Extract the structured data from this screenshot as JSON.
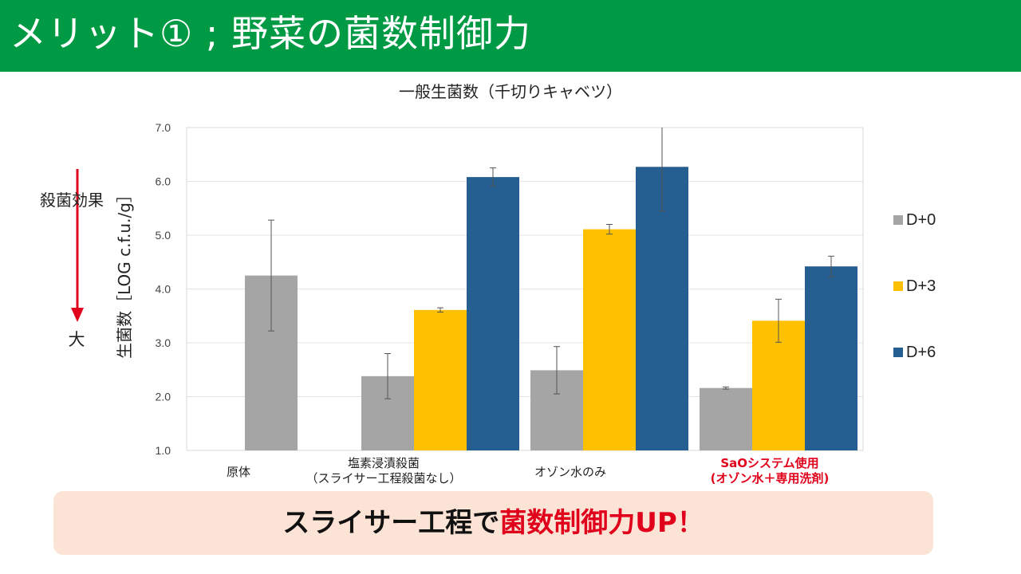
{
  "slide": {
    "title": "メリット① ; 野菜の菌数制御力",
    "side_label": "殺菌効果",
    "side_label_big": "大",
    "banner": {
      "text_main": "スライサー工程で",
      "text_highlight": "菌数制御力UP！"
    },
    "colors": {
      "title_bar": "#009a44",
      "banner_bg": "#fbe4d5",
      "highlight": "#e0001b",
      "arrow": "#e0001b"
    }
  },
  "chart_data": {
    "type": "bar",
    "title": "一般生菌数（千切りキャベツ）",
    "ylabel": "生菌数［LOG c.f.u./g］",
    "xlabel": "",
    "ylim": [
      1.0,
      7.0
    ],
    "yticks": [
      "1.0",
      "2.0",
      "3.0",
      "4.0",
      "5.0",
      "6.0",
      "7.0"
    ],
    "grid": true,
    "legend_position": "right",
    "categories": [
      "原体",
      "塩素浸漬殺菌（スライサー工程殺菌なし）",
      "オゾン水のみ",
      "SaOシステム使用(オゾン水＋専用洗剤)"
    ],
    "category_label_lines": [
      [
        "原体"
      ],
      [
        "塩素浸漬殺菌",
        "（スライサー工程殺菌なし）"
      ],
      [
        "オゾン水のみ"
      ],
      [
        "SaOシステム使用",
        "(オゾン水＋専用洗剤)"
      ]
    ],
    "highlight_category_index": 3,
    "series": [
      {
        "name": "D+0",
        "color": "#a5a5a5",
        "values": [
          4.25,
          2.38,
          2.49,
          2.16
        ],
        "errors": [
          1.03,
          0.42,
          0.44,
          0.02
        ]
      },
      {
        "name": "D+3",
        "color": "#ffc000",
        "values": [
          null,
          3.61,
          5.11,
          3.41
        ],
        "errors": [
          null,
          0.04,
          0.09,
          0.4
        ]
      },
      {
        "name": "D+6",
        "color": "#255e91",
        "values": [
          null,
          6.08,
          6.27,
          4.42
        ],
        "errors": [
          null,
          0.17,
          0.82,
          0.19
        ]
      }
    ]
  }
}
